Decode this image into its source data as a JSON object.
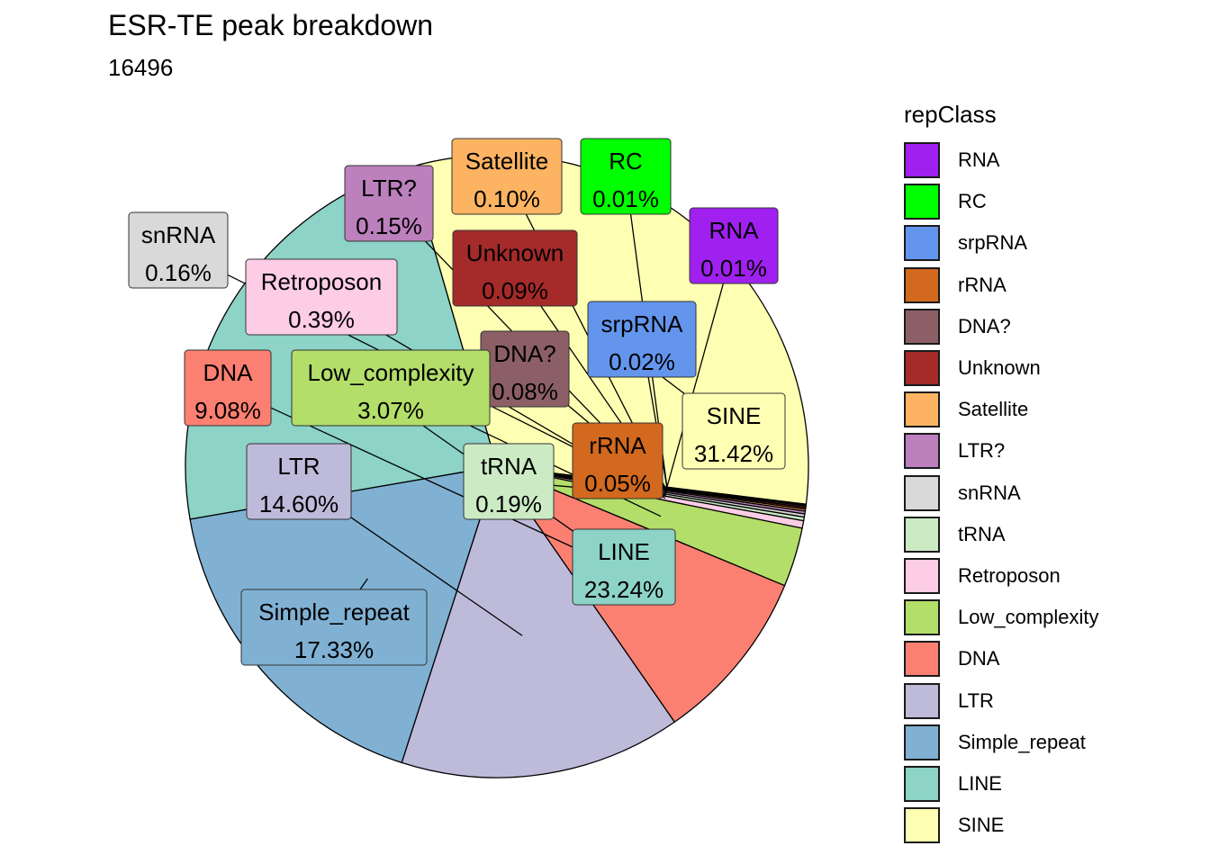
{
  "chart_data": {
    "type": "pie",
    "title": "ESR-TE peak breakdown",
    "subtitle": "16496",
    "legend_title": "repClass",
    "legend_position": "right",
    "slices": [
      {
        "name": "RNA",
        "value": 0.01,
        "label": "0.01%",
        "color": "#A020F0"
      },
      {
        "name": "RC",
        "value": 0.01,
        "label": "0.01%",
        "color": "#00FF00"
      },
      {
        "name": "srpRNA",
        "value": 0.02,
        "label": "0.02%",
        "color": "#6495ED"
      },
      {
        "name": "rRNA",
        "value": 0.05,
        "label": "0.05%",
        "color": "#D2691E"
      },
      {
        "name": "DNA?",
        "value": 0.08,
        "label": "0.08%",
        "color": "#8B5F65"
      },
      {
        "name": "Unknown",
        "value": 0.09,
        "label": "0.09%",
        "color": "#A52A2A"
      },
      {
        "name": "Satellite",
        "value": 0.1,
        "label": "0.10%",
        "color": "#FDB462"
      },
      {
        "name": "LTR?",
        "value": 0.15,
        "label": "0.15%",
        "color": "#BC80BD"
      },
      {
        "name": "snRNA",
        "value": 0.16,
        "label": "0.16%",
        "color": "#D9D9D9"
      },
      {
        "name": "tRNA",
        "value": 0.19,
        "label": "0.19%",
        "color": "#CCEBC5"
      },
      {
        "name": "Retroposon",
        "value": 0.39,
        "label": "0.39%",
        "color": "#FCCDE5"
      },
      {
        "name": "Low_complexity",
        "value": 3.07,
        "label": "3.07%",
        "color": "#B3DE69"
      },
      {
        "name": "DNA",
        "value": 9.08,
        "label": "9.08%",
        "color": "#FB8072"
      },
      {
        "name": "LTR",
        "value": 14.6,
        "label": "14.60%",
        "color": "#BEBADA"
      },
      {
        "name": "Simple_repeat",
        "value": 17.33,
        "label": "17.33%",
        "color": "#80B1D3"
      },
      {
        "name": "LINE",
        "value": 23.24,
        "label": "23.24%",
        "color": "#8DD3C7"
      },
      {
        "name": "SINE",
        "value": 31.42,
        "label": "31.42%",
        "color": "#FFFFB3"
      }
    ]
  }
}
